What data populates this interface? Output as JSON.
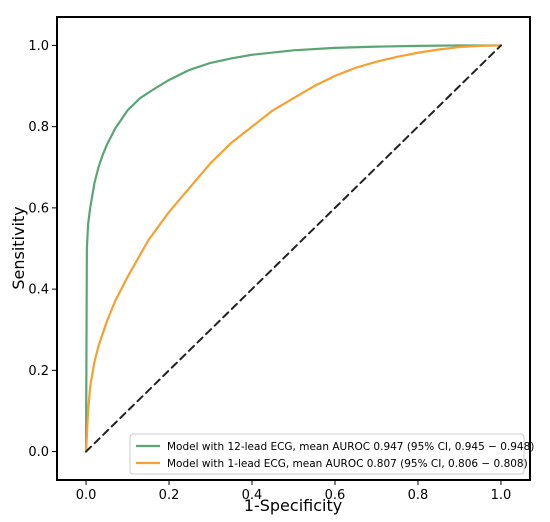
{
  "chart_data": {
    "type": "line",
    "xlabel": "1-Specificity",
    "ylabel": "Sensitivity",
    "xlim": [
      -0.07,
      1.07
    ],
    "ylim": [
      -0.07,
      1.07
    ],
    "xticks": [
      "0.0",
      "0.2",
      "0.4",
      "0.6",
      "0.8",
      "1.0"
    ],
    "yticks": [
      "0.0",
      "0.2",
      "0.4",
      "0.6",
      "0.8",
      "1.0"
    ],
    "grid": false,
    "legend_position": "lower-right",
    "series": [
      {
        "name": "Model with 12-lead ECG, mean AUROC 0.947 (95% CI, 0.945 − 0.948)",
        "color": "#5aa574",
        "x": [
          0,
          0.002,
          0.005,
          0.01,
          0.02,
          0.03,
          0.04,
          0.05,
          0.07,
          0.1,
          0.13,
          0.16,
          0.2,
          0.25,
          0.3,
          0.35,
          0.4,
          0.5,
          0.6,
          0.7,
          0.8,
          0.9,
          1.0
        ],
        "y": [
          0,
          0.5,
          0.56,
          0.6,
          0.66,
          0.7,
          0.73,
          0.755,
          0.795,
          0.84,
          0.87,
          0.89,
          0.915,
          0.94,
          0.957,
          0.968,
          0.977,
          0.988,
          0.994,
          0.997,
          0.999,
          1.0,
          1.0
        ]
      },
      {
        "name": "Model with 1-lead ECG, mean AUROC 0.807 (95% CI, 0.806 − 0.808)",
        "color": "#f7a031",
        "x": [
          0,
          0.005,
          0.01,
          0.02,
          0.03,
          0.05,
          0.07,
          0.1,
          0.15,
          0.2,
          0.25,
          0.3,
          0.35,
          0.4,
          0.45,
          0.5,
          0.55,
          0.6,
          0.65,
          0.7,
          0.75,
          0.8,
          0.85,
          0.9,
          0.95,
          1.0
        ],
        "y": [
          0,
          0.1,
          0.16,
          0.22,
          0.26,
          0.32,
          0.37,
          0.43,
          0.52,
          0.59,
          0.65,
          0.71,
          0.76,
          0.8,
          0.84,
          0.87,
          0.9,
          0.925,
          0.945,
          0.96,
          0.972,
          0.982,
          0.99,
          0.996,
          0.999,
          1.0
        ]
      },
      {
        "name": "",
        "color": "#222222",
        "dashed": true,
        "x": [
          0,
          1
        ],
        "y": [
          0,
          1
        ]
      }
    ]
  }
}
